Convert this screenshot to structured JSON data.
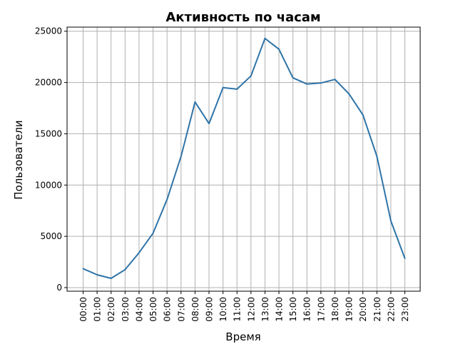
{
  "chart_data": {
    "type": "line",
    "title": "Активность по часам",
    "xlabel": "Время",
    "ylabel": "Пользователи",
    "categories": [
      "00:00",
      "01:00",
      "02:00",
      "03:00",
      "04:00",
      "05:00",
      "06:00",
      "07:00",
      "08:00",
      "09:00",
      "10:00",
      "11:00",
      "12:00",
      "13:00",
      "14:00",
      "15:00",
      "16:00",
      "17:00",
      "18:00",
      "19:00",
      "20:00",
      "21:00",
      "22:00",
      "23:00"
    ],
    "series": [
      {
        "values": [
          1850,
          1250,
          900,
          1750,
          3400,
          5300,
          8600,
          12800,
          18100,
          16000,
          19500,
          19350,
          20650,
          24300,
          23250,
          20450,
          19850,
          19950,
          20300,
          18900,
          16850,
          12800,
          6500,
          2850
        ],
        "color": "#2f74a8"
      }
    ],
    "yticks": [
      "0",
      "5000",
      "10000",
      "15000",
      "20000",
      "25000"
    ],
    "ylim": [
      -350,
      25400
    ],
    "grid": true,
    "legend": "none"
  }
}
